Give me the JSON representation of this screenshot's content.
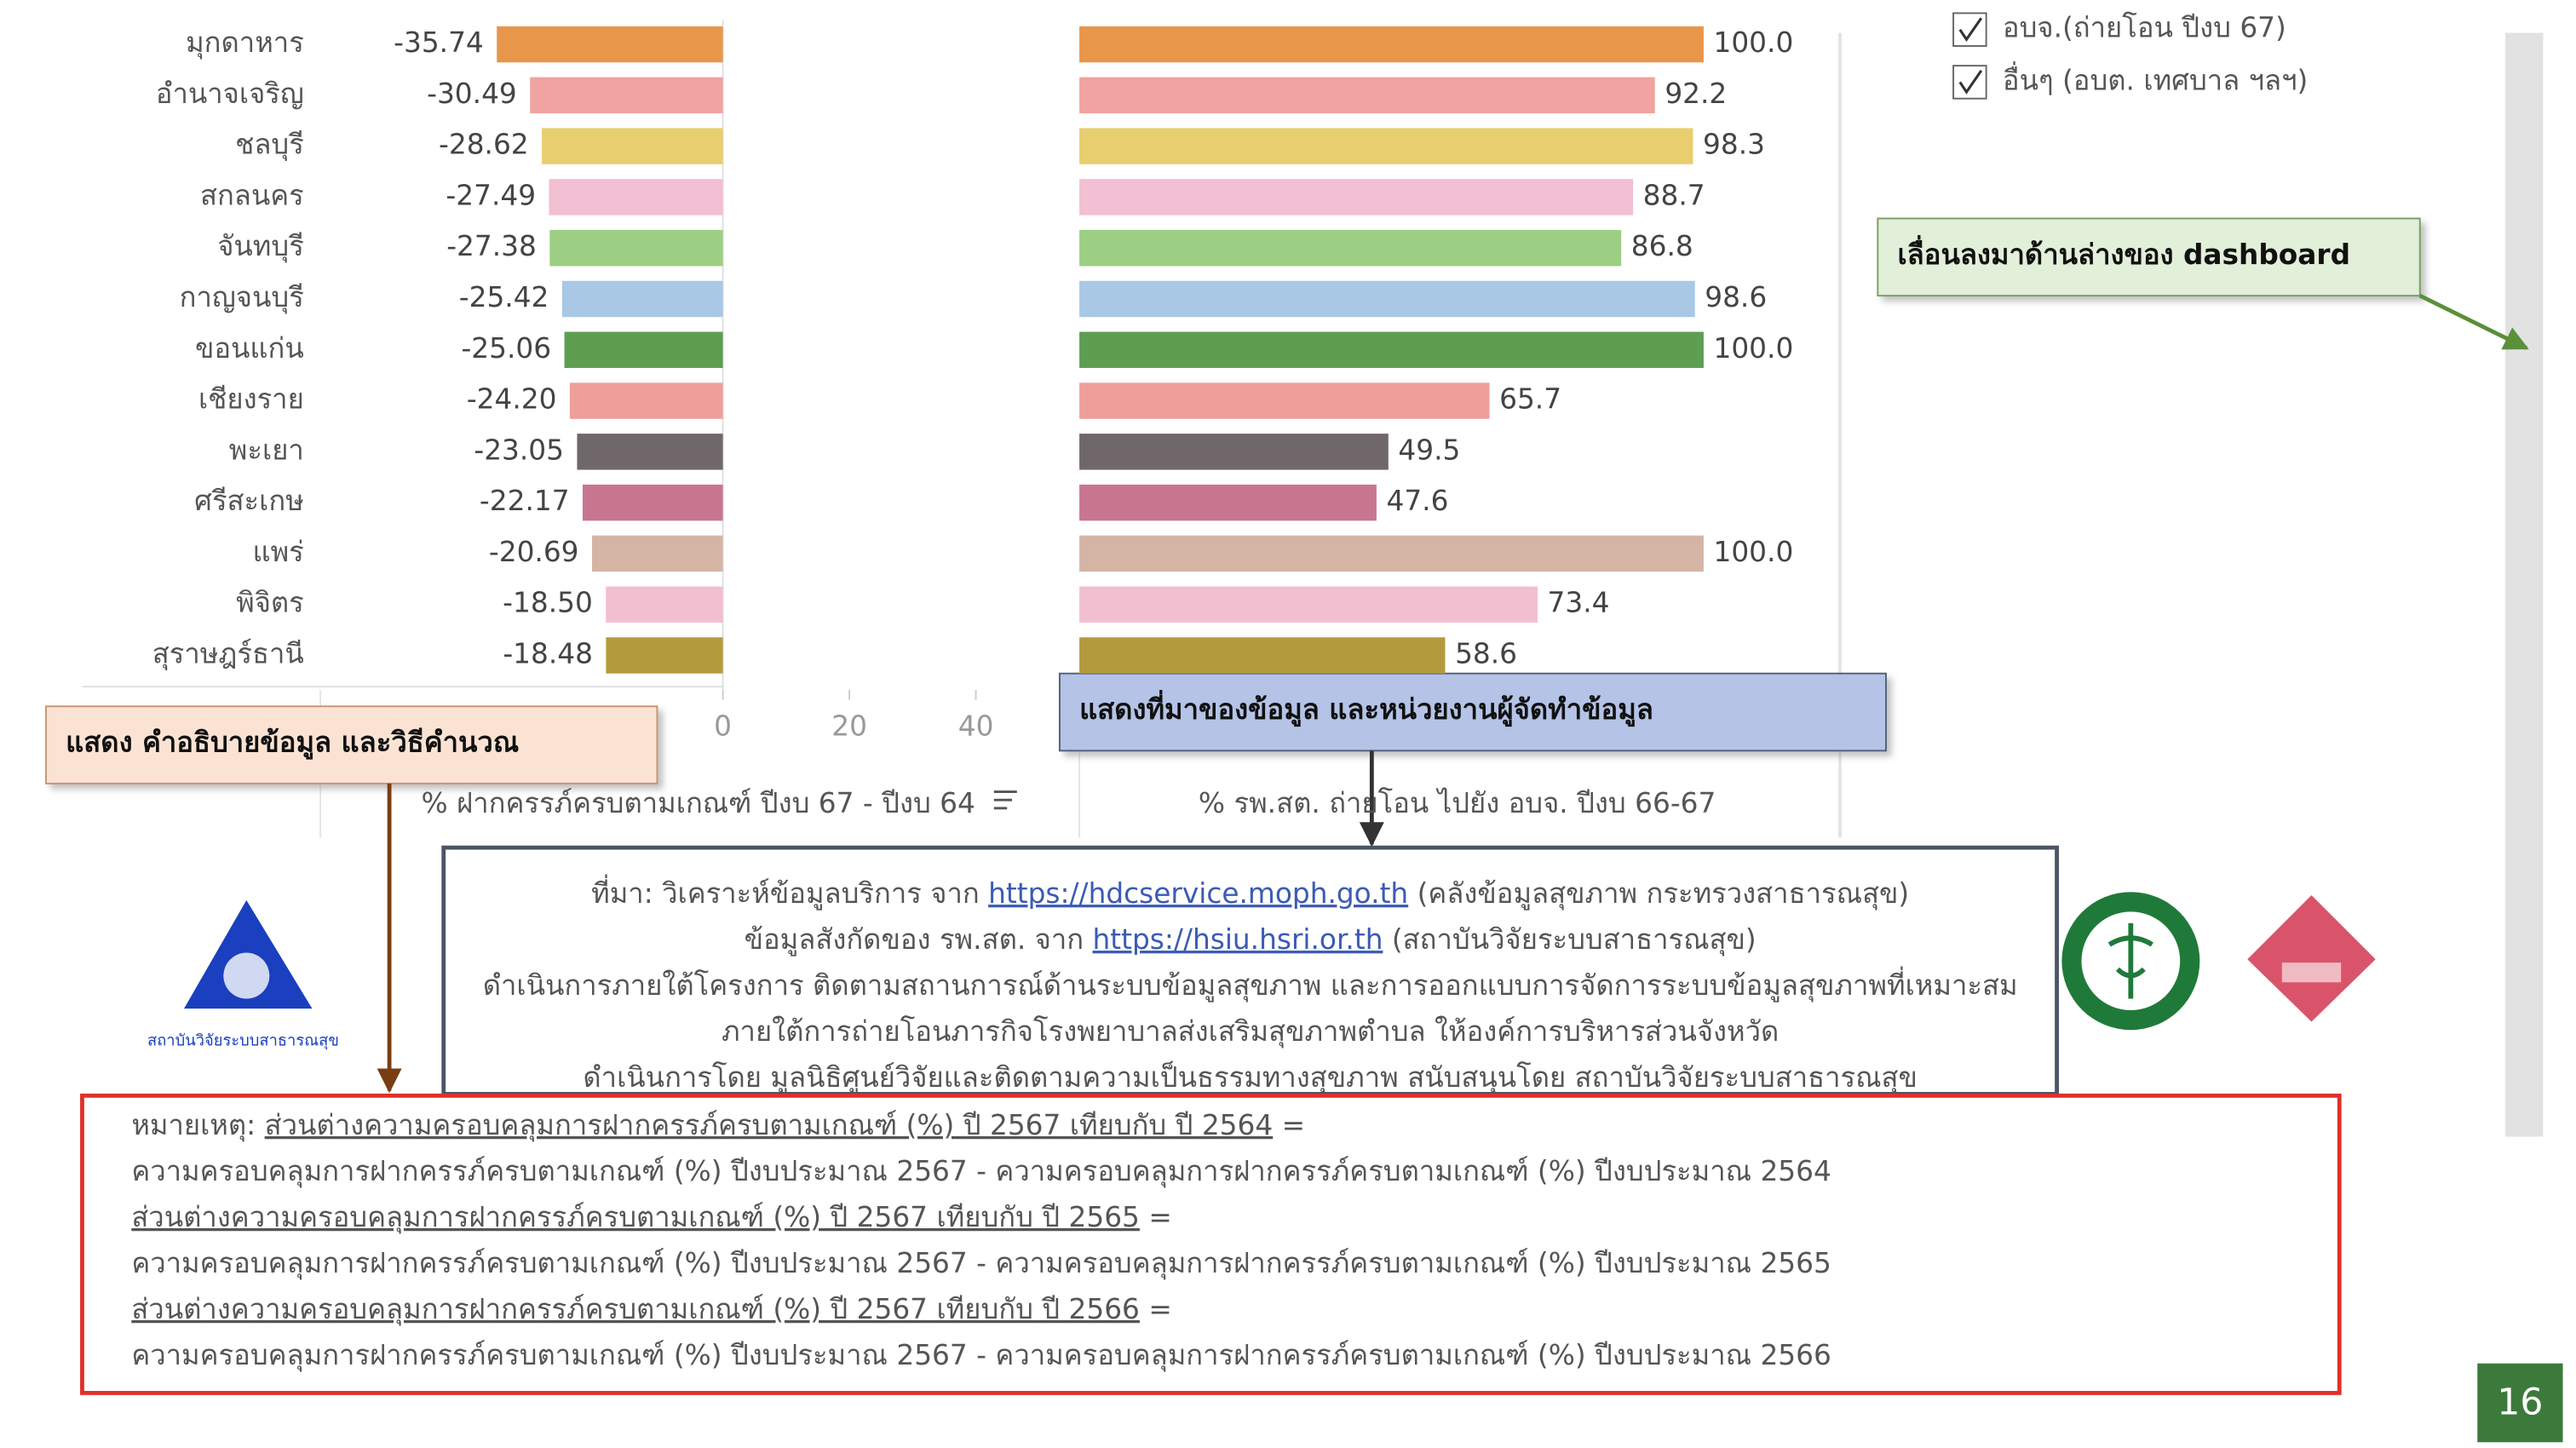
{
  "chart_data": [
    {
      "type": "hbar",
      "x_label": "% ฝากครรภ์ครบตามเกณฑ์ ปีงบ 67 - ปีงบ 64",
      "categories": [
        "มุกดาหาร",
        "อำนาจเจริญ",
        "ชลบุรี",
        "สกลนคร",
        "จันทบุรี",
        "กาญจนบุรี",
        "ขอนแก่น",
        "เชียงราย",
        "พะเยา",
        "ศรีสะเกษ",
        "แพร่",
        "พิจิตร",
        "สุราษฎร์ธานี"
      ],
      "values": [
        -35.74,
        -30.49,
        -28.62,
        -27.49,
        -27.38,
        -25.42,
        -25.06,
        -24.2,
        -23.05,
        -22.17,
        -20.69,
        -18.5,
        -18.48
      ],
      "value_labels": [
        "-35.74",
        "-30.49",
        "-28.62",
        "-27.49",
        "-27.38",
        "-25.42",
        "-25.06",
        "-24.20",
        "-23.05",
        "-22.17",
        "-20.69",
        "-18.50",
        "-18.48"
      ],
      "colors": [
        "#e8964a",
        "#f0a3a0",
        "#e8ce6e",
        "#f3bfd2",
        "#9ccf83",
        "#a8c8e6",
        "#5e9e51",
        "#ef9f9a",
        "#70676a",
        "#c8768f",
        "#d4b5a5",
        "#f2bfd1",
        "#b39a3c"
      ],
      "xlim": [
        -60,
        50
      ],
      "xticks": [
        0,
        20,
        40
      ]
    },
    {
      "type": "hbar",
      "x_label": "% รพ.สต. ถ่ายโอน ไปยัง อบจ. ปีงบ 66-67",
      "values": [
        100,
        92.2,
        98.3,
        88.7,
        86.8,
        98.6,
        100,
        65.7,
        49.5,
        47.6,
        100,
        73.4,
        58.6
      ],
      "value_labels": [
        "100.0",
        "92.2",
        "98.3",
        "88.7",
        "86.8",
        "98.6",
        "100.0",
        "65.7",
        "49.5",
        "47.6",
        "100.0",
        "73.4",
        "58.6"
      ],
      "colors": [
        "#e8964a",
        "#f0a3a0",
        "#e8ce6e",
        "#f3bfd2",
        "#9ccf83",
        "#a8c8e6",
        "#5e9e51",
        "#ef9f9a",
        "#70676a",
        "#c8768f",
        "#d4b5a5",
        "#f2bfd1",
        "#b39a3c"
      ],
      "xlim": [
        0,
        120
      ]
    }
  ],
  "filters": [
    "อบจ.(ถ่ายโอน ปีงบ 67)",
    "อื่นๆ (อบต. เทศบาล ฯลฯ)"
  ],
  "callouts": {
    "scroll": "เลื่อนลงมาด้านล่างของ dashboard",
    "explanation": "แสดง คำอธิบายข้อมูล และวิธีคำนวณ",
    "source": "แสดงที่มาของข้อมูล และหน่วยงานผู้จัดทำข้อมูล"
  },
  "source_lines": [
    [
      {
        "text": "ที่มา: วิเคราะห์ข้อมูลบริการ จาก ",
        "link": false
      },
      {
        "text": "https://hdcservice.moph.go.th",
        "link": true
      },
      {
        "text": " (คลังข้อมูลสุขภาพ กระทรวงสาธารณสุข)",
        "link": false
      }
    ],
    [
      {
        "text": "ข้อมูลสังกัดของ รพ.สต. จาก ",
        "link": false
      },
      {
        "text": "https://hsiu.hsri.or.th",
        "link": true
      },
      {
        "text": " (สถาบันวิจัยระบบสาธารณสุข)",
        "link": false
      }
    ],
    [
      {
        "text": "ดำเนินการภายใต้โครงการ ติดตามสถานการณ์ด้านระบบข้อมูลสุขภาพ และการออกแบบการจัดการระบบข้อมูลสุขภาพที่เหมาะสม",
        "link": false
      }
    ],
    [
      {
        "text": "ภายใต้การถ่ายโอนภารกิจโรงพยาบาลส่งเสริมสุขภาพตำบล ให้องค์การบริหารส่วนจังหวัด",
        "link": false
      }
    ],
    [
      {
        "text": "ดำเนินการโดย มูลนิธิศูนย์วิจัยและติดตามความเป็นธรรมทางสุขภาพ สนับสนุนโดย สถาบันวิจัยระบบสาธารณสุข",
        "link": false
      }
    ]
  ],
  "logo_caption": "สถาบันวิจัยระบบสาธารณสุข",
  "note": {
    "label": "หมายเหตุ: ",
    "items": [
      {
        "term": "ส่วนต่างความครอบคลุมการฝากครรภ์ครบตามเกณฑ์ (%) ปี 2567 เทียบกับ ปี 2564",
        "equals": " =",
        "formula": "ความครอบคลุมการฝากครรภ์ครบตามเกณฑ์ (%) ปีงบประมาณ 2567 - ความครอบคลุมการฝากครรภ์ครบตามเกณฑ์ (%) ปีงบประมาณ 2564"
      },
      {
        "term": "ส่วนต่างความครอบคลุมการฝากครรภ์ครบตามเกณฑ์ (%) ปี 2567 เทียบกับ ปี 2565",
        "equals": " =",
        "formula": "ความครอบคลุมการฝากครรภ์ครบตามเกณฑ์ (%) ปีงบประมาณ 2567 - ความครอบคลุมการฝากครรภ์ครบตามเกณฑ์ (%) ปีงบประมาณ 2565"
      },
      {
        "term": "ส่วนต่างความครอบคลุมการฝากครรภ์ครบตามเกณฑ์ (%) ปี 2567 เทียบกับ ปี 2566",
        "equals": " =",
        "formula": "ความครอบคลุมการฝากครรภ์ครบตามเกณฑ์ (%) ปีงบประมาณ 2567 - ความครอบคลุมการฝากครรภ์ครบตามเกณฑ์ (%) ปีงบประมาณ 2566"
      }
    ]
  },
  "page_number": "16"
}
